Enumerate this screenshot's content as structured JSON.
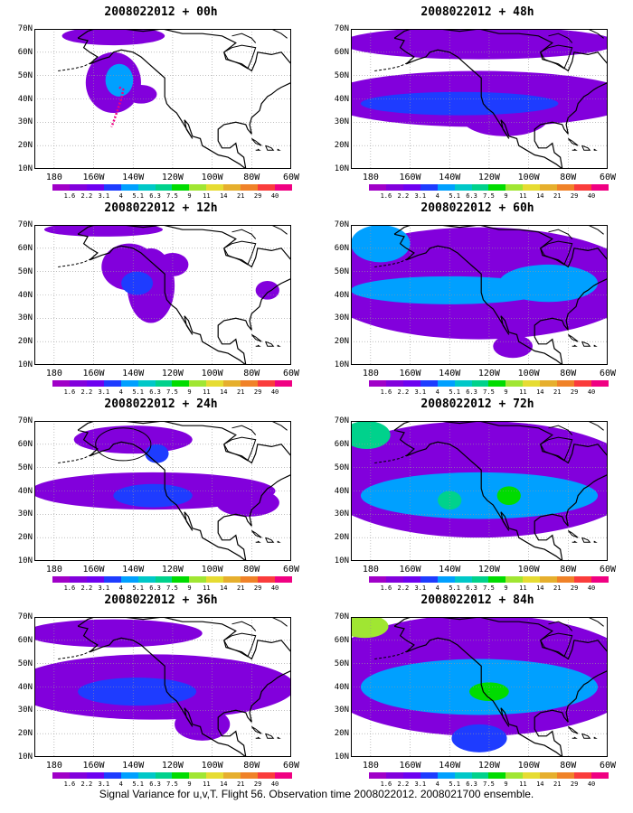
{
  "figure": {
    "caption": "Signal Variance for u,v,T. Flight 56. Observation time 2008022012. 2008021700 ensemble."
  },
  "axes": {
    "y_labels": [
      "70N",
      "60N",
      "50N",
      "40N",
      "30N",
      "20N",
      "10N"
    ],
    "x_labels": [
      "180",
      "160W",
      "140W",
      "120W",
      "100W",
      "80W",
      "60W"
    ],
    "lat_range": [
      10,
      70
    ],
    "lon_range": [
      -190,
      -60
    ]
  },
  "colorbar": {
    "ticks": [
      "1.6",
      "2.2",
      "3.1",
      "4",
      "5.1",
      "6.3",
      "7.5",
      "9",
      "11",
      "14",
      "21",
      "29",
      "40"
    ],
    "colors": [
      "#A000C8",
      "#8200DC",
      "#6E00F0",
      "#1E3CFF",
      "#00A0FF",
      "#00C8C8",
      "#00D28C",
      "#00DC00",
      "#A0E632",
      "#E6DC32",
      "#E6AF2D",
      "#F08228",
      "#FA3C3C",
      "#F00082"
    ]
  },
  "panels": [
    {
      "title": "2008022012 + 00h",
      "lead": 0,
      "blobs": [
        {
          "lon": -150,
          "lat": 47,
          "rlon": 14,
          "rlat": 13,
          "level": 1
        },
        {
          "lon": -147,
          "lat": 48,
          "rlon": 7,
          "rlat": 7,
          "level": 4
        },
        {
          "lon": -150,
          "lat": 67,
          "rlon": 26,
          "rlat": 4,
          "level": 1
        },
        {
          "lon": -136,
          "lat": 42,
          "rlon": 8,
          "rlat": 4,
          "level": 1
        }
      ],
      "flight_track": [
        [
          -147,
          45
        ],
        [
          -145,
          44
        ],
        [
          -146,
          40
        ],
        [
          -148,
          35
        ],
        [
          -150,
          30
        ],
        [
          -151,
          28
        ]
      ],
      "ellipse": null
    },
    {
      "title": "2008022012 + 48h",
      "lead": 48,
      "blobs": [
        {
          "lon": -125,
          "lat": 64,
          "rlon": 70,
          "rlat": 7,
          "level": 1
        },
        {
          "lon": -125,
          "lat": 40,
          "rlon": 80,
          "rlat": 12,
          "level": 1
        },
        {
          "lon": -135,
          "lat": 38,
          "rlon": 50,
          "rlat": 5,
          "level": 3
        },
        {
          "lon": -112,
          "lat": 32,
          "rlon": 22,
          "rlat": 8,
          "level": 1
        }
      ],
      "flight_track": [],
      "ellipse": null
    },
    {
      "title": "2008022012 + 12h",
      "lead": 12,
      "blobs": [
        {
          "lon": -142,
          "lat": 52,
          "rlon": 14,
          "rlat": 10,
          "level": 1
        },
        {
          "lon": -138,
          "lat": 45,
          "rlon": 8,
          "rlat": 5,
          "level": 3
        },
        {
          "lon": -131,
          "lat": 44,
          "rlon": 12,
          "rlat": 16,
          "level": 1
        },
        {
          "lon": -120,
          "lat": 53,
          "rlon": 8,
          "rlat": 5,
          "level": 1
        },
        {
          "lon": -72,
          "lat": 42,
          "rlon": 6,
          "rlat": 4,
          "level": 1
        },
        {
          "lon": -155,
          "lat": 68,
          "rlon": 30,
          "rlat": 3,
          "level": 1
        }
      ],
      "flight_track": [],
      "ellipse": null
    },
    {
      "title": "2008022012 + 60h",
      "lead": 60,
      "blobs": [
        {
          "lon": -125,
          "lat": 45,
          "rlon": 82,
          "rlat": 24,
          "level": 1
        },
        {
          "lon": -140,
          "lat": 42,
          "rlon": 50,
          "rlat": 6,
          "level": 4
        },
        {
          "lon": -175,
          "lat": 62,
          "rlon": 15,
          "rlat": 8,
          "level": 4
        },
        {
          "lon": -90,
          "lat": 45,
          "rlon": 25,
          "rlat": 8,
          "level": 4
        },
        {
          "lon": -108,
          "lat": 18,
          "rlon": 10,
          "rlat": 5,
          "level": 1
        }
      ],
      "flight_track": [],
      "ellipse": null
    },
    {
      "title": "2008022012 + 24h",
      "lead": 24,
      "blobs": [
        {
          "lon": -130,
          "lat": 40,
          "rlon": 62,
          "rlat": 8,
          "level": 1
        },
        {
          "lon": -130,
          "lat": 38,
          "rlon": 20,
          "rlat": 5,
          "level": 3
        },
        {
          "lon": -140,
          "lat": 62,
          "rlon": 30,
          "rlat": 6,
          "level": 1
        },
        {
          "lon": -128,
          "lat": 56,
          "rlon": 6,
          "rlat": 4,
          "level": 3
        },
        {
          "lon": -82,
          "lat": 35,
          "rlon": 16,
          "rlat": 6,
          "level": 1
        }
      ],
      "flight_track": [],
      "ellipse": {
        "lon": -145,
        "lat": 60,
        "rlon": 14,
        "rlat": 7
      }
    },
    {
      "title": "2008022012 + 72h",
      "lead": 72,
      "blobs": [
        {
          "lon": -125,
          "lat": 45,
          "rlon": 82,
          "rlat": 25,
          "level": 1
        },
        {
          "lon": -125,
          "lat": 38,
          "rlon": 60,
          "rlat": 10,
          "level": 4
        },
        {
          "lon": -182,
          "lat": 64,
          "rlon": 12,
          "rlat": 6,
          "level": 6
        },
        {
          "lon": -140,
          "lat": 36,
          "rlon": 6,
          "rlat": 4,
          "level": 6
        },
        {
          "lon": -110,
          "lat": 38,
          "rlon": 6,
          "rlat": 4,
          "level": 7
        }
      ],
      "flight_track": [],
      "ellipse": null
    },
    {
      "title": "2008022012 + 36h",
      "lead": 36,
      "blobs": [
        {
          "lon": -130,
          "lat": 40,
          "rlon": 72,
          "rlat": 14,
          "level": 1
        },
        {
          "lon": -138,
          "lat": 38,
          "rlon": 30,
          "rlat": 6,
          "level": 3
        },
        {
          "lon": -150,
          "lat": 63,
          "rlon": 45,
          "rlat": 6,
          "level": 1
        },
        {
          "lon": -105,
          "lat": 24,
          "rlon": 14,
          "rlat": 7,
          "level": 1
        }
      ],
      "flight_track": [],
      "ellipse": null
    },
    {
      "title": "2008022012 + 84h",
      "lead": 84,
      "blobs": [
        {
          "lon": -125,
          "lat": 45,
          "rlon": 82,
          "rlat": 26,
          "level": 1
        },
        {
          "lon": -125,
          "lat": 40,
          "rlon": 60,
          "rlat": 12,
          "level": 4
        },
        {
          "lon": -183,
          "lat": 66,
          "rlon": 12,
          "rlat": 5,
          "level": 8
        },
        {
          "lon": -120,
          "lat": 38,
          "rlon": 10,
          "rlat": 4,
          "level": 7
        },
        {
          "lon": -125,
          "lat": 18,
          "rlon": 14,
          "rlat": 6,
          "level": 3
        }
      ],
      "flight_track": [],
      "ellipse": null
    }
  ]
}
